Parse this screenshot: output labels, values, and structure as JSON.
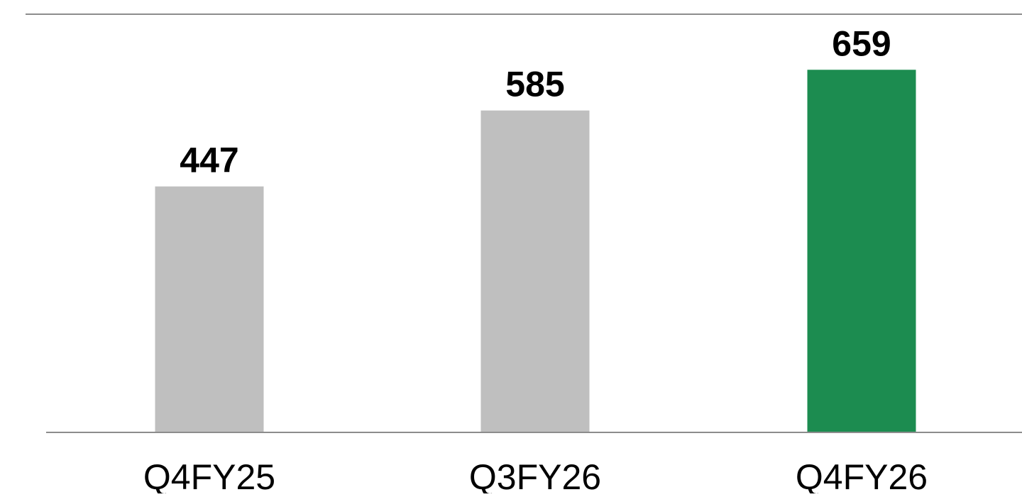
{
  "chart_data": {
    "type": "bar",
    "categories": [
      "Q4FY25",
      "Q3FY26",
      "Q4FY26"
    ],
    "values": [
      447,
      585,
      659
    ],
    "data_labels": [
      "447",
      "585",
      "659"
    ],
    "title": "",
    "xlabel": "",
    "ylabel": "",
    "ylim": [
      0,
      760
    ],
    "grid": false,
    "legend": "none",
    "colors": {
      "bars": [
        "#BFBFBF",
        "#BFBFBF",
        "#1C8C50"
      ],
      "top_rule": "#8C8C8C",
      "baseline": "#8C8C8C",
      "label": "#000000"
    }
  }
}
